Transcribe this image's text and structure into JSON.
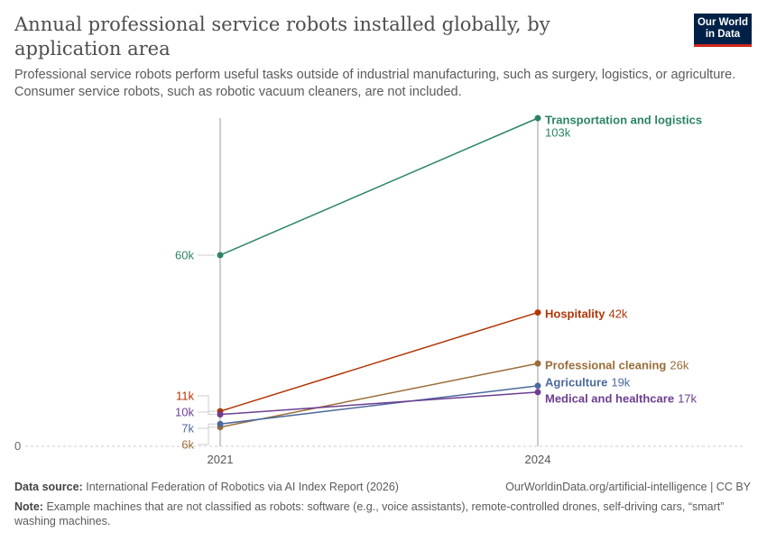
{
  "header": {
    "title": "Annual professional service robots installed globally, by application area",
    "subtitle": "Professional service robots perform useful tasks outside of industrial manufacturing, such as surgery, logistics, or agriculture. Consumer service robots, such as robotic vacuum cleaners, are not included.",
    "logo": "Our World in Data"
  },
  "chart_data": {
    "type": "line",
    "categories": [
      "2021",
      "2024"
    ],
    "ylim": [
      0,
      103000
    ],
    "y_ticks": [
      "0"
    ],
    "series": [
      {
        "name": "Transportation and logistics",
        "values": [
          60000,
          103000
        ],
        "labels": [
          "60k",
          "103k"
        ],
        "color": "#2c8465"
      },
      {
        "name": "Hospitality",
        "values": [
          11000,
          42000
        ],
        "labels": [
          "11k",
          "42k"
        ],
        "color": "#b13507"
      },
      {
        "name": "Professional cleaning",
        "values": [
          6000,
          26000
        ],
        "labels": [
          "6k",
          "26k"
        ],
        "color": "#996d39"
      },
      {
        "name": "Agriculture",
        "values": [
          7000,
          19000
        ],
        "labels": [
          "7k",
          "19k"
        ],
        "color": "#4c6a9c"
      },
      {
        "name": "Medical and healthcare",
        "values": [
          10000,
          17000
        ],
        "labels": [
          "10k",
          "17k"
        ],
        "color": "#6d3e91"
      }
    ]
  },
  "footer": {
    "source_label": "Data source:",
    "source": "International Federation of Robotics via AI Index Report (2026)",
    "url": "OurWorldinData.org/artificial-intelligence | CC BY",
    "note_label": "Note:",
    "note": "Example machines that are not classified as robots: software (e.g., voice assistants), remote-controlled drones, self-driving cars, “smart” washing machines."
  }
}
